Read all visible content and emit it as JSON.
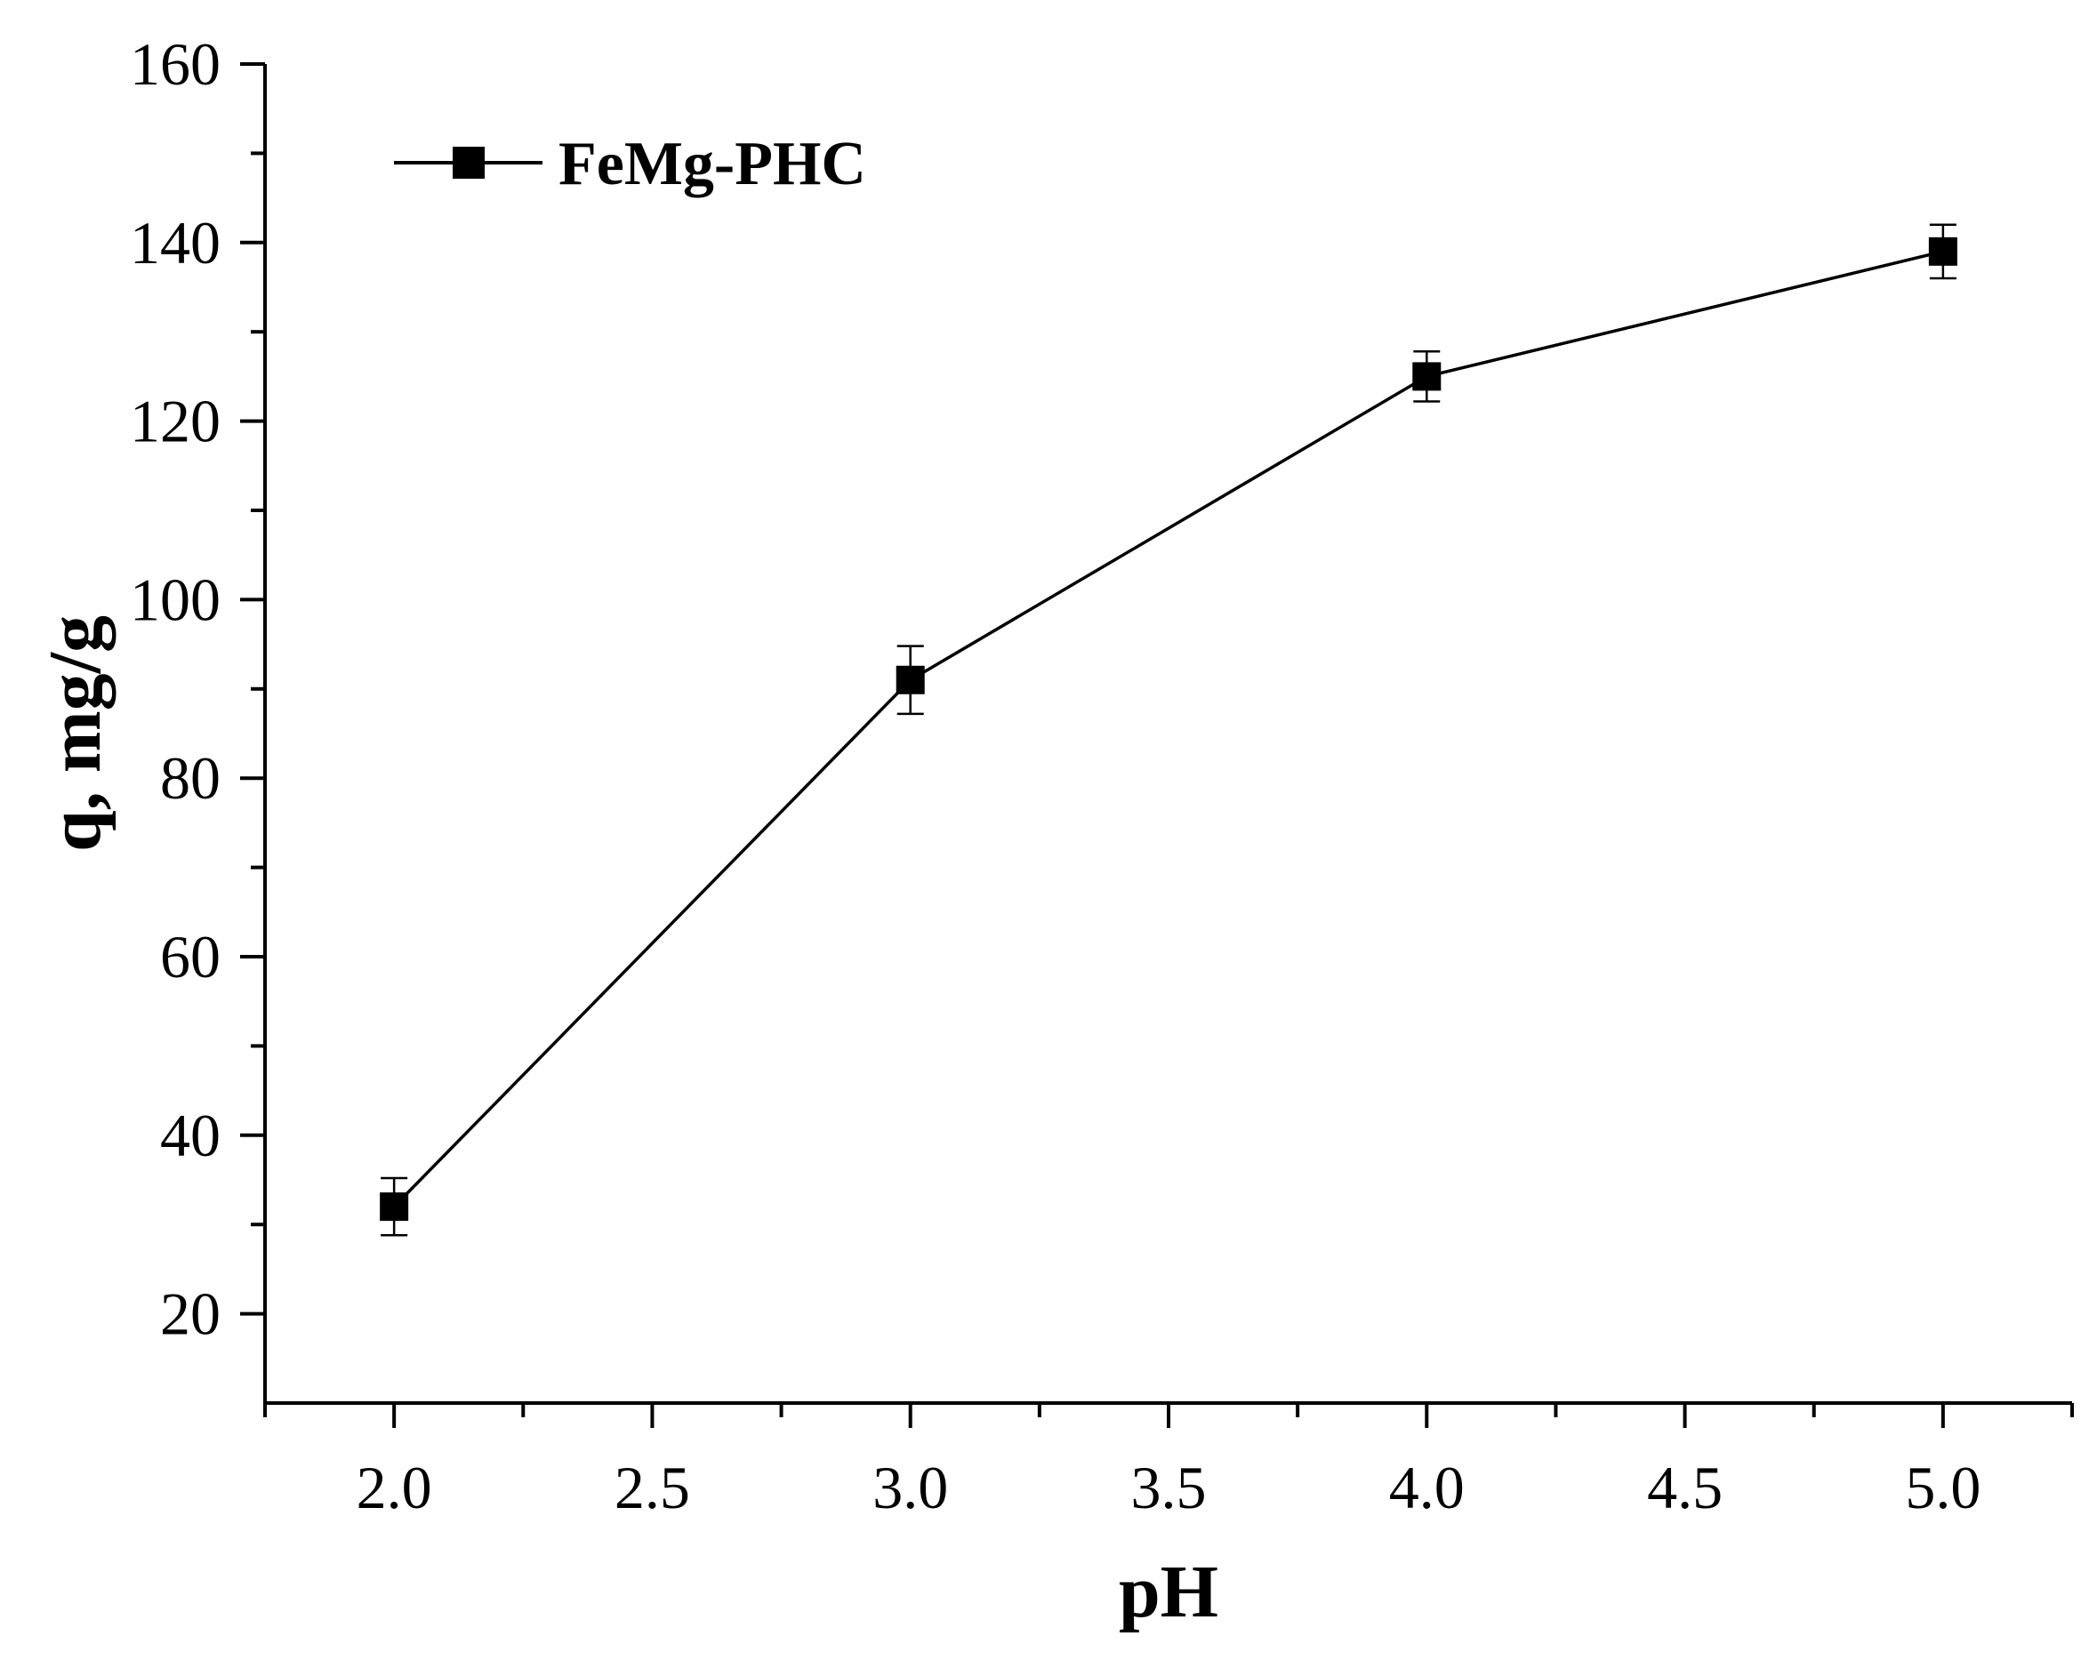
{
  "chart_data": {
    "type": "line",
    "title": "",
    "xlabel": "pH",
    "ylabel": "q, mg/g",
    "xlim": [
      1.75,
      5.25
    ],
    "ylim": [
      10,
      160
    ],
    "xticks": [
      2.0,
      2.5,
      3.0,
      3.5,
      4.0,
      4.5,
      5.0
    ],
    "xtick_labels": [
      "2.0",
      "2.5",
      "3.0",
      "3.5",
      "4.0",
      "4.5",
      "5.0"
    ],
    "yticks": [
      20,
      40,
      60,
      80,
      100,
      120,
      140,
      160
    ],
    "ytick_labels": [
      "20",
      "40",
      "60",
      "80",
      "100",
      "120",
      "140",
      "160"
    ],
    "grid": false,
    "legend_position": "top-left",
    "series": [
      {
        "name": "FeMg-PHC",
        "x": [
          2.0,
          3.0,
          4.0,
          5.0
        ],
        "y": [
          32,
          91,
          125,
          139
        ],
        "error": [
          3.2,
          3.8,
          2.8,
          3.0
        ],
        "marker": "square",
        "color": "#000000"
      }
    ]
  }
}
